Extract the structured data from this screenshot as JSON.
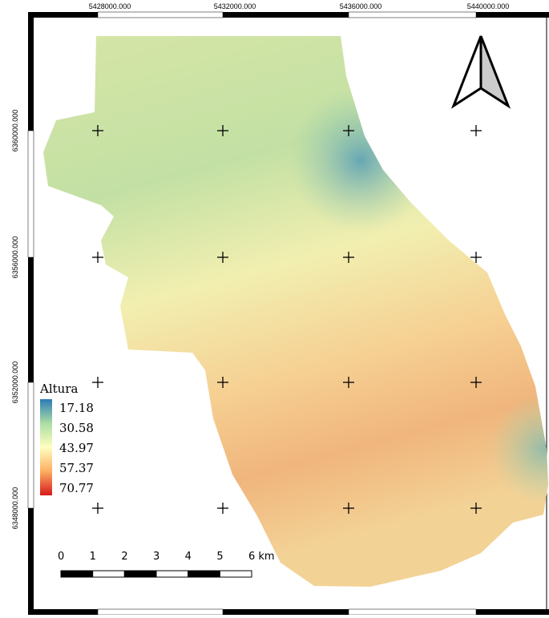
{
  "map": {
    "x_labels": [
      "5428000.000",
      "5432000.000",
      "5436000.000",
      "5440000.000"
    ],
    "y_labels": [
      "6360000.000",
      "6356000.000",
      "6352000.000",
      "6348000.000"
    ],
    "legend": {
      "title": "Altura",
      "values": [
        "17.18",
        "30.58",
        "43.97",
        "57.37",
        "70.77"
      ]
    },
    "scale_bar": {
      "labels": [
        "0",
        "1",
        "2",
        "3",
        "4",
        "5",
        "6 km"
      ]
    }
  }
}
